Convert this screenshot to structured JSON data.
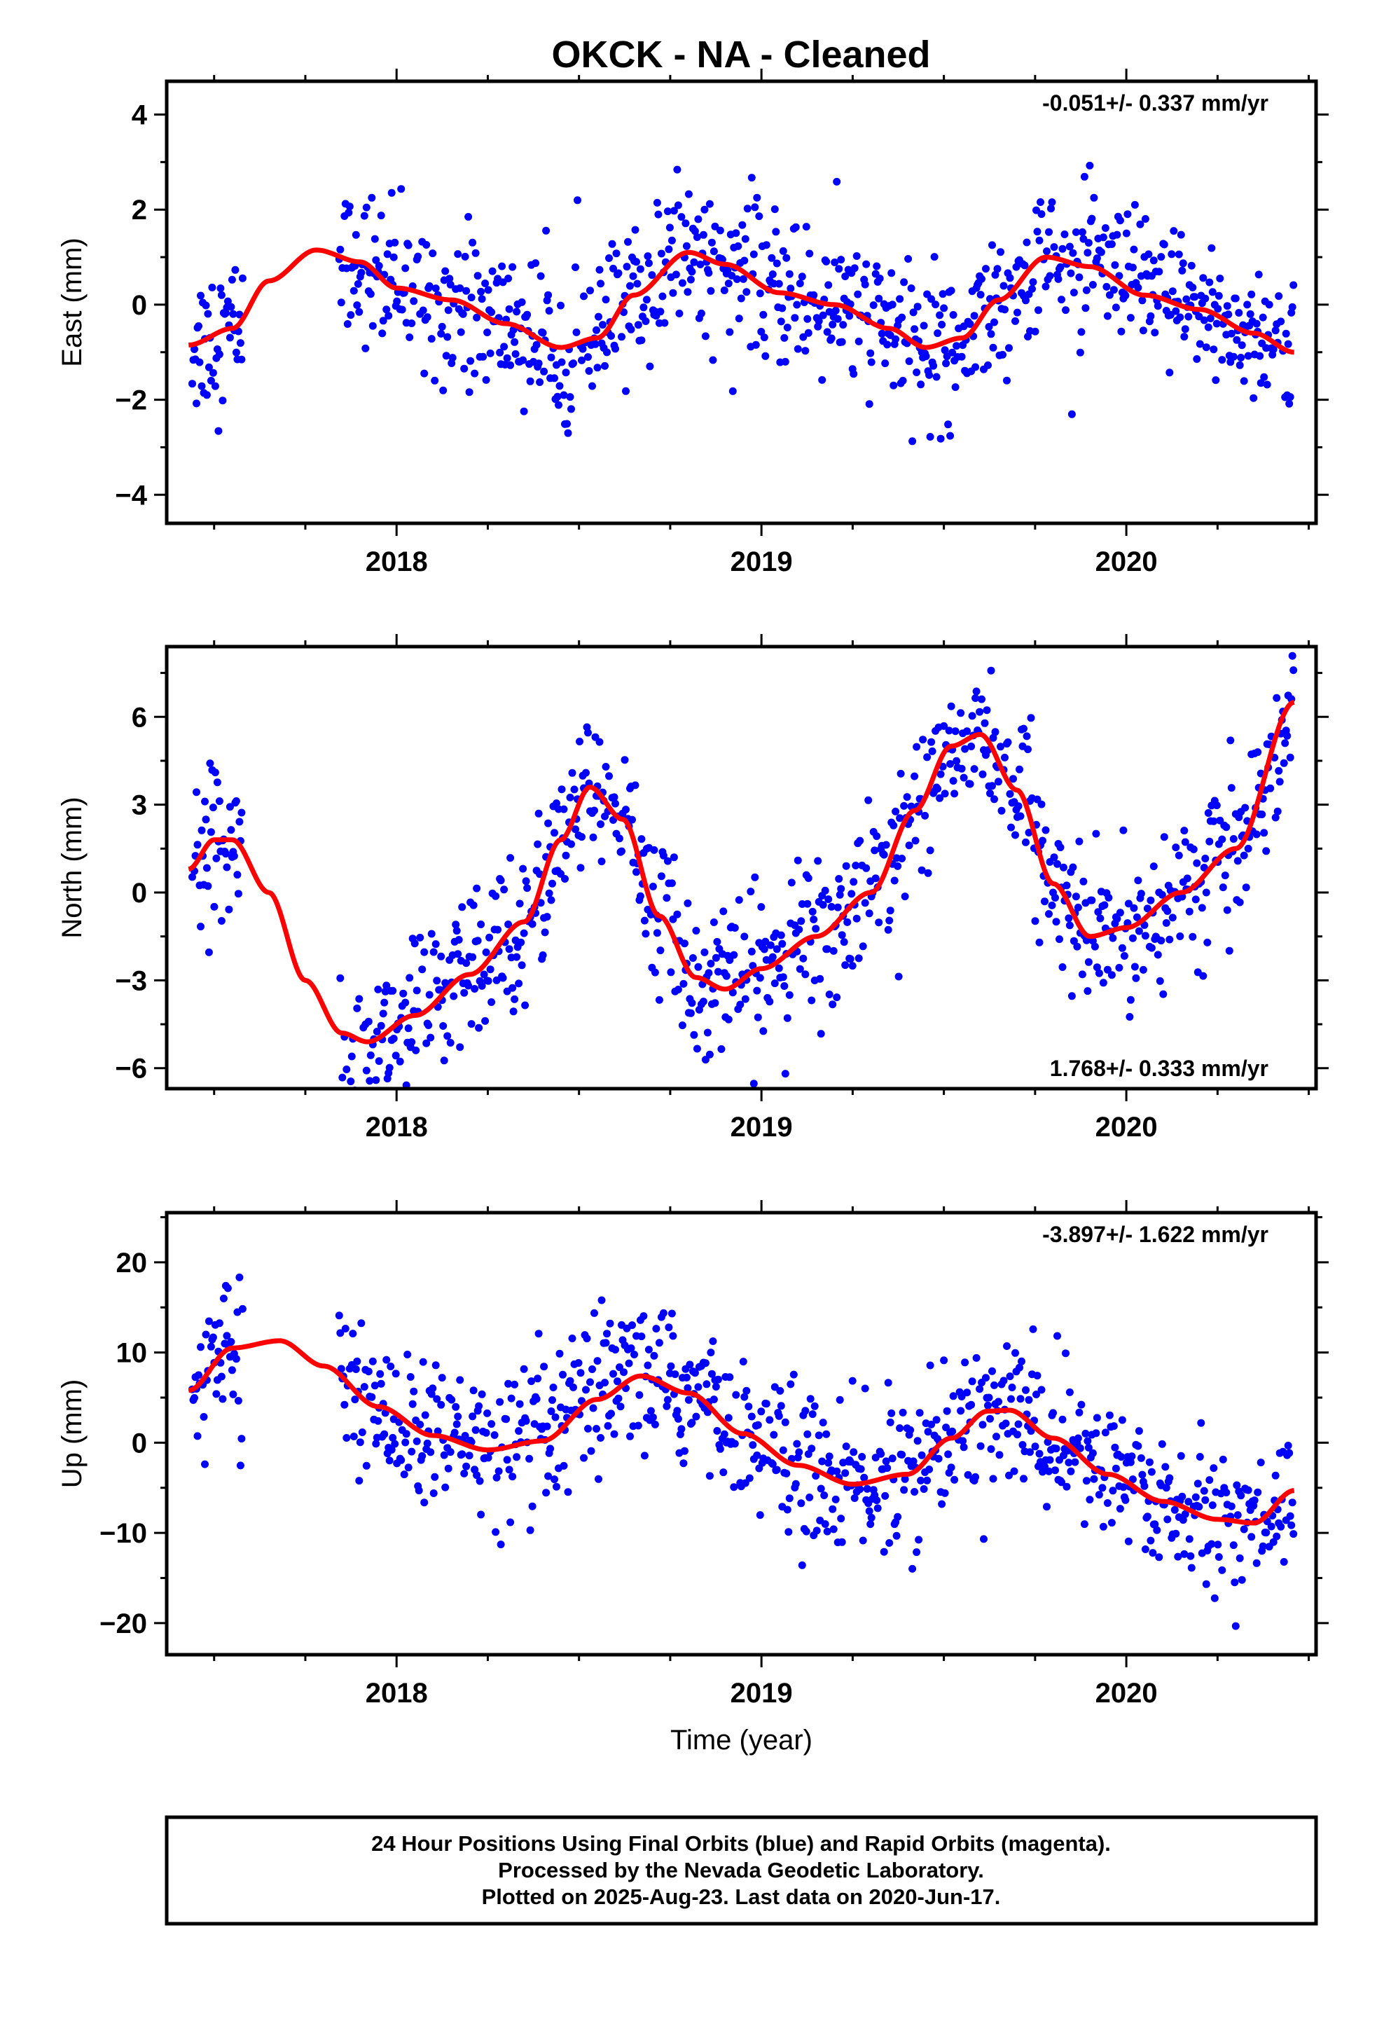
{
  "title": "OKCK  - NA - Cleaned",
  "footer": {
    "lines": [
      "24 Hour Positions Using Final Orbits (blue) and Rapid Orbits (magenta).",
      "Processed by the Nevada Geodetic Laboratory.",
      "Plotted on 2025-Aug-23. Last data on 2020-Jun-17."
    ]
  },
  "colors": {
    "points": "#0000ff",
    "fit": "#ff0000",
    "axes": "#000000"
  },
  "chart_data": [
    {
      "type": "scatter",
      "ylabel": "East (mm)",
      "xlabel": "",
      "rate_text": "-0.051+/- 0.337 mm/yr",
      "xlim": [
        2017.37,
        2020.52
      ],
      "ylim": [
        -4.6,
        4.7
      ],
      "xticks": [
        2018,
        2019,
        2020
      ],
      "xtick_labels": [
        "2018",
        "2019",
        "2020"
      ],
      "yticks": [
        -4,
        -2,
        0,
        2,
        4
      ],
      "ytick_labels": [
        "−4",
        "−2",
        "0",
        "2",
        "4"
      ],
      "series": [
        {
          "kind": "points",
          "start": 2017.44,
          "end": 2020.46,
          "gap_start": 2017.58,
          "gap_end": 2017.84
        },
        {
          "kind": "fit",
          "x": [
            2017.43,
            2017.55,
            2017.65,
            2017.78,
            2017.9,
            2018.0,
            2018.15,
            2018.3,
            2018.45,
            2018.55,
            2018.65,
            2018.8,
            2018.9,
            2019.05,
            2019.2,
            2019.35,
            2019.45,
            2019.55,
            2019.65,
            2019.78,
            2019.9,
            2020.05,
            2020.2,
            2020.35,
            2020.46
          ],
          "y": [
            -0.85,
            -0.5,
            0.5,
            1.15,
            0.9,
            0.35,
            0.1,
            -0.4,
            -0.9,
            -0.7,
            0.2,
            1.1,
            0.85,
            0.25,
            0.0,
            -0.5,
            -0.9,
            -0.7,
            0.1,
            1.0,
            0.8,
            0.2,
            -0.1,
            -0.6,
            -1.0
          ]
        }
      ]
    },
    {
      "type": "scatter",
      "ylabel": "North (mm)",
      "xlabel": "",
      "rate_text": "1.768+/- 0.333 mm/yr",
      "xlim": [
        2017.37,
        2020.52
      ],
      "ylim": [
        -6.7,
        8.4
      ],
      "xticks": [
        2018,
        2019,
        2020
      ],
      "xtick_labels": [
        "2018",
        "2019",
        "2020"
      ],
      "yticks": [
        -6,
        -3,
        0,
        3,
        6
      ],
      "ytick_labels": [
        "−6",
        "−3",
        "0",
        "3",
        "6"
      ],
      "series": [
        {
          "kind": "points",
          "start": 2017.44,
          "end": 2020.46,
          "gap_start": 2017.58,
          "gap_end": 2017.84
        },
        {
          "kind": "fit",
          "x": [
            2017.43,
            2017.5,
            2017.55,
            2017.65,
            2017.75,
            2017.85,
            2017.92,
            2018.05,
            2018.2,
            2018.35,
            2018.45,
            2018.53,
            2018.62,
            2018.72,
            2018.82,
            2018.9,
            2019.0,
            2019.15,
            2019.3,
            2019.42,
            2019.52,
            2019.6,
            2019.7,
            2019.8,
            2019.9,
            2020.0,
            2020.15,
            2020.3,
            2020.46
          ],
          "y": [
            0.8,
            1.8,
            1.8,
            0.0,
            -3.0,
            -4.8,
            -5.1,
            -4.2,
            -2.8,
            -1.0,
            1.8,
            3.6,
            2.5,
            -0.8,
            -2.9,
            -3.3,
            -2.6,
            -1.5,
            0.0,
            2.8,
            5.0,
            5.4,
            3.5,
            0.3,
            -1.5,
            -1.2,
            0.0,
            1.5,
            6.5
          ]
        }
      ]
    },
    {
      "type": "scatter",
      "ylabel": "Up (mm)",
      "xlabel": "Time (year)",
      "rate_text": "-3.897+/- 1.622 mm/yr",
      "xlim": [
        2017.37,
        2020.52
      ],
      "ylim": [
        -23.5,
        25.5
      ],
      "xticks": [
        2018,
        2019,
        2020
      ],
      "xtick_labels": [
        "2018",
        "2019",
        "2020"
      ],
      "yticks": [
        -20,
        -10,
        0,
        10,
        20
      ],
      "ytick_labels": [
        "−20",
        "−10",
        "0",
        "10",
        "20"
      ],
      "series": [
        {
          "kind": "points",
          "start": 2017.44,
          "end": 2020.46,
          "gap_start": 2017.58,
          "gap_end": 2017.84
        },
        {
          "kind": "fit",
          "x": [
            2017.43,
            2017.55,
            2017.68,
            2017.8,
            2017.95,
            2018.1,
            2018.25,
            2018.4,
            2018.55,
            2018.67,
            2018.8,
            2018.95,
            2019.1,
            2019.25,
            2019.4,
            2019.52,
            2019.62,
            2019.68,
            2019.8,
            2019.95,
            2020.1,
            2020.25,
            2020.35,
            2020.46
          ],
          "y": [
            5.8,
            10.5,
            11.3,
            8.5,
            4.0,
            0.8,
            -0.8,
            0.2,
            4.8,
            7.4,
            5.5,
            1.0,
            -2.5,
            -4.6,
            -3.5,
            0.5,
            3.5,
            3.6,
            0.5,
            -3.5,
            -6.5,
            -8.5,
            -8.9,
            -5.3
          ]
        }
      ]
    }
  ]
}
